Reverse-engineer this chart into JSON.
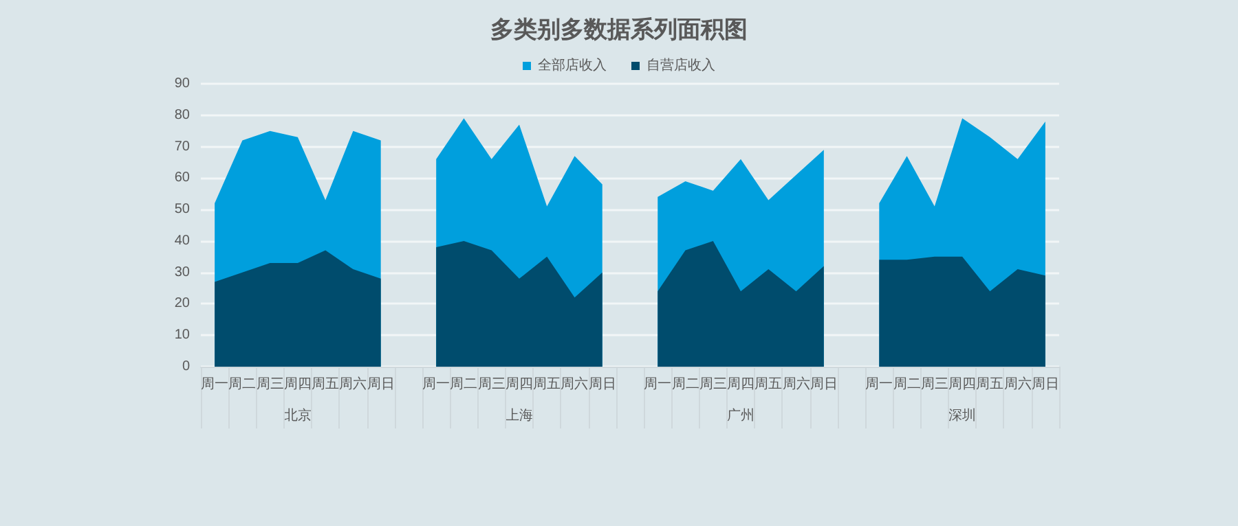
{
  "chart_data": {
    "type": "area",
    "title": "多类别多数据系列面积图",
    "categories": [
      "周一",
      "周二",
      "周三",
      "周四",
      "周五",
      "周六",
      "周日",
      null,
      "周一",
      "周二",
      "周三",
      "周四",
      "周五",
      "周六",
      "周日",
      null,
      "周一",
      "周二",
      "周三",
      "周四",
      "周五",
      "周六",
      "周日",
      null,
      "周一",
      "周二",
      "周三",
      "周四",
      "周五",
      "周六",
      "周日"
    ],
    "series": [
      {
        "name": "全部店收入",
        "color": "#009fdd",
        "values": [
          52,
          72,
          75,
          73,
          53,
          75,
          72,
          null,
          66,
          79,
          66,
          77,
          51,
          67,
          58,
          null,
          54,
          59,
          56,
          66,
          53,
          61,
          69,
          null,
          52,
          67,
          51,
          79,
          73,
          66,
          78
        ]
      },
      {
        "name": "自营店收入",
        "color": "#004c6d",
        "values": [
          27,
          30,
          33,
          33,
          37,
          31,
          28,
          null,
          38,
          40,
          37,
          28,
          35,
          22,
          30,
          null,
          24,
          37,
          40,
          24,
          31,
          24,
          32,
          null,
          34,
          34,
          35,
          35,
          24,
          31,
          29
        ]
      }
    ],
    "annotations": [
      "北京",
      "上海",
      "广州",
      "深圳"
    ],
    "ylim": [
      0,
      90
    ],
    "yticks": [
      0,
      10,
      20,
      30,
      40,
      50,
      60,
      70,
      80,
      90
    ],
    "grid": "y",
    "legend": "top"
  }
}
